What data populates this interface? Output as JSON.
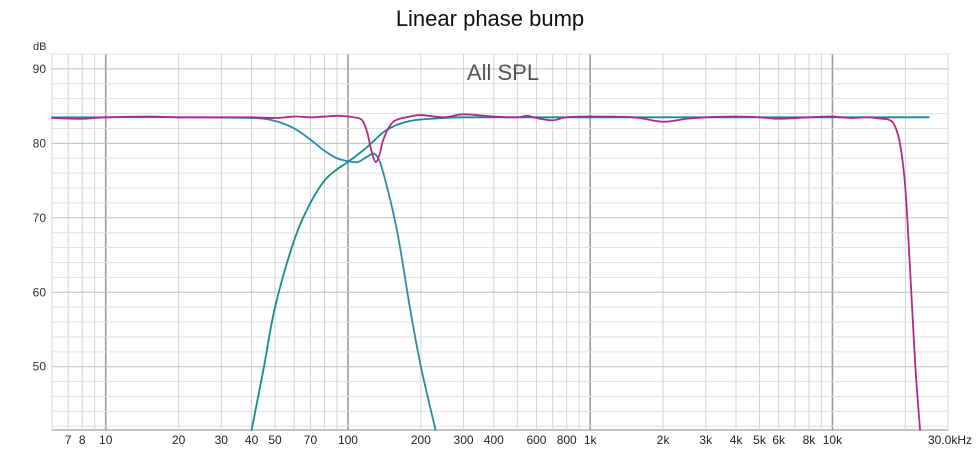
{
  "chart_data": {
    "type": "line",
    "title": "Linear phase bump",
    "plot_label": "All SPL",
    "ylabel": "dB",
    "x_scale": "log",
    "xlim": [
      6,
      30000
    ],
    "ylim": [
      41.5,
      92
    ],
    "grid": true,
    "y_ticks": [
      50,
      60,
      70,
      80,
      90
    ],
    "x_ticks": [
      {
        "value": 7,
        "label": "7"
      },
      {
        "value": 8,
        "label": "8"
      },
      {
        "value": 10,
        "label": "10"
      },
      {
        "value": 20,
        "label": "20"
      },
      {
        "value": 30,
        "label": "30"
      },
      {
        "value": 40,
        "label": "40"
      },
      {
        "value": 50,
        "label": "50"
      },
      {
        "value": 70,
        "label": "70"
      },
      {
        "value": 100,
        "label": "100"
      },
      {
        "value": 200,
        "label": "200"
      },
      {
        "value": 300,
        "label": "300"
      },
      {
        "value": 400,
        "label": "400"
      },
      {
        "value": 600,
        "label": "600"
      },
      {
        "value": 800,
        "label": "800"
      },
      {
        "value": 1000,
        "label": "1k"
      },
      {
        "value": 2000,
        "label": "2k"
      },
      {
        "value": 3000,
        "label": "3k"
      },
      {
        "value": 4000,
        "label": "4k"
      },
      {
        "value": 5000,
        "label": "5k"
      },
      {
        "value": 6000,
        "label": "6k"
      },
      {
        "value": 8000,
        "label": "8k"
      },
      {
        "value": 10000,
        "label": "10k"
      },
      {
        "value": 30000,
        "label": "30.0kHz"
      }
    ],
    "series": [
      {
        "color": "#2b8aa8",
        "x": [
          6,
          10,
          20,
          40,
          50,
          60,
          70,
          80,
          90,
          100,
          110,
          120,
          130,
          140,
          160,
          180,
          200,
          230
        ],
        "y": [
          83.5,
          83.5,
          83.5,
          83.4,
          83.0,
          82.0,
          80.5,
          79.0,
          78.0,
          77.6,
          77.5,
          78.2,
          78.5,
          76.0,
          68.0,
          58.0,
          50.0,
          41.5
        ]
      },
      {
        "color": "#138c8c",
        "x": [
          40,
          45,
          50,
          60,
          70,
          80,
          90,
          100,
          120,
          140,
          160,
          180,
          200,
          250,
          300,
          500,
          1000,
          5000,
          10000,
          25000
        ],
        "y": [
          41.5,
          50.0,
          58.0,
          67.0,
          72.0,
          75.0,
          76.5,
          77.5,
          79.5,
          81.5,
          82.5,
          83.0,
          83.2,
          83.4,
          83.5,
          83.5,
          83.5,
          83.5,
          83.5,
          83.5
        ]
      },
      {
        "color": "#b02a8c",
        "x": [
          6,
          8,
          10,
          15,
          20,
          30,
          40,
          50,
          60,
          70,
          80,
          90,
          100,
          110,
          115,
          120,
          125,
          130,
          135,
          140,
          150,
          160,
          180,
          200,
          250,
          300,
          400,
          500,
          550,
          600,
          700,
          800,
          1000,
          1500,
          2000,
          2500,
          3000,
          4000,
          5000,
          6000,
          8000,
          10000,
          12000,
          14000,
          16000,
          17000,
          18000,
          19000,
          20000,
          21000,
          22000,
          23000
        ],
        "y": [
          83.4,
          83.3,
          83.5,
          83.6,
          83.5,
          83.5,
          83.5,
          83.4,
          83.6,
          83.5,
          83.6,
          83.7,
          83.6,
          83.4,
          83.0,
          81.5,
          79.0,
          77.5,
          78.5,
          80.5,
          82.5,
          83.2,
          83.6,
          83.8,
          83.5,
          83.9,
          83.6,
          83.5,
          83.7,
          83.4,
          83.1,
          83.5,
          83.6,
          83.5,
          82.9,
          83.3,
          83.5,
          83.6,
          83.5,
          83.3,
          83.5,
          83.6,
          83.4,
          83.5,
          83.3,
          83.2,
          82.5,
          80.0,
          74.0,
          62.0,
          50.0,
          41.5
        ]
      }
    ]
  }
}
